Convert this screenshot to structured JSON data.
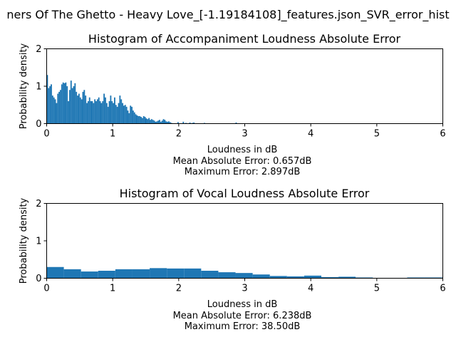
{
  "figure": {
    "suptitle": "ners Of The Ghetto - Heavy Love_[-1.19184108]_features.json_SVR_error_hist"
  },
  "chart_data": [
    {
      "type": "histogram",
      "title": "Histogram of Accompaniment Loudness Absolute Error",
      "xlabel": "Loudness in dB",
      "ylabel": "Probability density",
      "xlim": [
        0,
        6
      ],
      "ylim": [
        0,
        2
      ],
      "xticks": [
        "0",
        "1",
        "2",
        "3",
        "4",
        "5",
        "6"
      ],
      "yticks": [
        "0",
        "1",
        "2"
      ],
      "stats": [
        "Mean Absolute Error: 0.657dB",
        "Maximum Error: 2.897dB"
      ],
      "color": "#1f77b4",
      "bin_width": 0.02,
      "bin_start": 0.0,
      "values": [
        1.3,
        0.95,
        1.0,
        1.05,
        0.75,
        0.7,
        0.65,
        0.55,
        0.8,
        0.85,
        0.9,
        1.05,
        1.1,
        1.08,
        1.1,
        1.0,
        0.6,
        0.9,
        1.15,
        0.95,
        1.0,
        1.08,
        0.85,
        0.75,
        0.8,
        0.7,
        0.65,
        0.85,
        0.9,
        0.75,
        0.55,
        0.6,
        0.7,
        0.6,
        0.6,
        0.55,
        0.65,
        0.6,
        0.65,
        0.7,
        0.6,
        0.55,
        0.6,
        0.8,
        0.7,
        0.55,
        0.45,
        0.6,
        0.75,
        0.6,
        0.55,
        0.7,
        0.5,
        0.45,
        0.55,
        0.75,
        0.65,
        0.55,
        0.48,
        0.5,
        0.45,
        0.35,
        0.28,
        0.48,
        0.45,
        0.35,
        0.3,
        0.25,
        0.22,
        0.2,
        0.2,
        0.18,
        0.15,
        0.2,
        0.18,
        0.14,
        0.12,
        0.15,
        0.1,
        0.12,
        0.1,
        0.08,
        0.05,
        0.06,
        0.08,
        0.1,
        0.05,
        0.08,
        0.12,
        0.1,
        0.06,
        0.05,
        0.06,
        0.04,
        0.02,
        0.0,
        0.01,
        0.0,
        0.0,
        0.01,
        0.0,
        0.0,
        0.0,
        0.0,
        0.01,
        0.02,
        0.0,
        0.0,
        0.03,
        0.0,
        0.02,
        0.0,
        0.0,
        0.0,
        0.01,
        0.0,
        0.0,
        0.0,
        0.0,
        0.0,
        0.0,
        0.0,
        0.0,
        0.0,
        0.0,
        0.0,
        0.0,
        0.0,
        0.0,
        0.0,
        0.0,
        0.0,
        0.0,
        0.0,
        0.0,
        0.0,
        0.0,
        0.0,
        0.0,
        0.0,
        0.01
      ],
      "extra_bins": [
        {
          "x": 1.78,
          "w": 0.02,
          "v": 0.06
        },
        {
          "x": 1.98,
          "w": 0.02,
          "v": 0.04
        },
        {
          "x": 2.06,
          "w": 0.02,
          "v": 0.05
        },
        {
          "x": 2.22,
          "w": 0.02,
          "v": 0.03
        },
        {
          "x": 2.38,
          "w": 0.02,
          "v": 0.02
        },
        {
          "x": 2.86,
          "w": 0.02,
          "v": 0.03
        }
      ]
    },
    {
      "type": "histogram",
      "title": "Histogram of Vocal Loudness Absolute Error",
      "xlabel": "Loudness in dB",
      "ylabel": "Probability density",
      "xlim": [
        0,
        6
      ],
      "ylim": [
        0,
        2
      ],
      "xticks": [
        "0",
        "1",
        "2",
        "3",
        "4",
        "5",
        "6"
      ],
      "yticks": [
        "0",
        "1",
        "2"
      ],
      "stats": [
        "Mean Absolute Error: 6.238dB",
        "Maximum Error: 38.50dB"
      ],
      "color": "#1f77b4",
      "bin_width": 0.26,
      "bin_start": 0.0,
      "values": [
        0.3,
        0.24,
        0.18,
        0.2,
        0.24,
        0.24,
        0.27,
        0.26,
        0.26,
        0.2,
        0.16,
        0.14,
        0.1,
        0.06,
        0.05,
        0.07,
        0.03,
        0.04,
        0.02,
        0.01,
        0.01,
        0.02,
        0.02,
        0.02
      ]
    }
  ]
}
